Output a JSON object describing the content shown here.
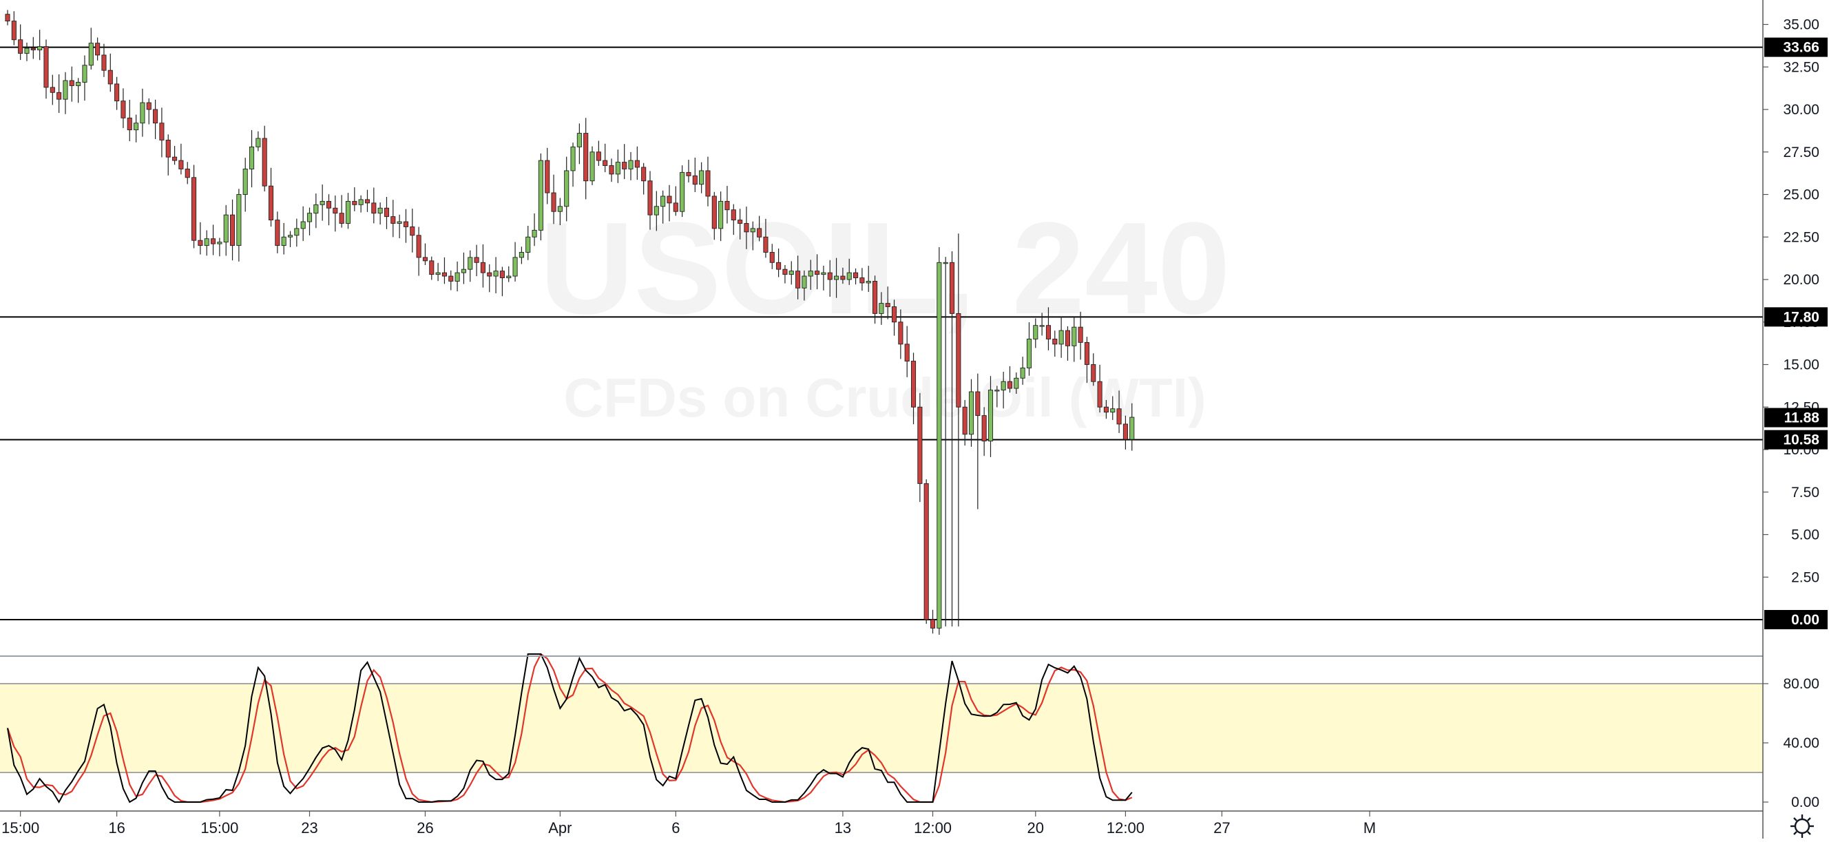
{
  "chart_data": {
    "type": "candlestick",
    "symbol_watermark": "USOIL, 240",
    "instrument_watermark": "CFDs on Crude Oil (WTI)",
    "price_axis": {
      "range": [
        -1.4,
        36.3
      ],
      "ticks": [
        "0.00",
        "2.50",
        "5.00",
        "7.50",
        "10.00",
        "12.50",
        "15.00",
        "17.50",
        "20.00",
        "22.50",
        "25.00",
        "27.50",
        "30.00",
        "32.50",
        "35.00"
      ],
      "tick_values": [
        0,
        2.5,
        5,
        7.5,
        10,
        12.5,
        15,
        17.5,
        20,
        22.5,
        25,
        27.5,
        30,
        32.5,
        35
      ]
    },
    "time_axis": {
      "labels": [
        "15:00",
        "16",
        "15:00",
        "23",
        "26",
        "Apr",
        "6",
        "13",
        "12:00",
        "20",
        "12:00",
        "27",
        "M"
      ],
      "label_bar_index": [
        2,
        17,
        33,
        47,
        65,
        86,
        104,
        130,
        144,
        160,
        174,
        189,
        212
      ]
    },
    "horizontal_levels": [
      {
        "value": 33.66,
        "label": "33.66"
      },
      {
        "value": 17.8,
        "label": "17.80"
      },
      {
        "value": 10.58,
        "label": "10.58"
      },
      {
        "value": 0.0,
        "label": "0.00"
      }
    ],
    "last_price": {
      "value": 11.88,
      "label": "11.88"
    },
    "colors": {
      "up": "#6ba583",
      "down": "#d75442",
      "up_fill": "#7fbf60",
      "down_fill": "#c9413f",
      "level_line": "#000000",
      "badge": "#000000",
      "stoch_k": "#000000",
      "stoch_d": "#e0362c",
      "stoch_band": "#fffad0"
    },
    "candles_close": [
      35.2,
      34.1,
      33.3,
      33.6,
      33.5,
      33.7,
      31.3,
      31.0,
      30.6,
      31.7,
      31.4,
      31.6,
      32.6,
      33.9,
      33.2,
      32.3,
      31.5,
      30.5,
      29.5,
      28.8,
      29.2,
      30.4,
      30.0,
      29.2,
      28.2,
      27.2,
      27.0,
      26.5,
      26.0,
      22.3,
      22.0,
      22.4,
      22.1,
      22.2,
      23.8,
      22.0,
      25.0,
      26.5,
      27.8,
      28.3,
      25.5,
      23.5,
      22.0,
      22.5,
      22.6,
      23.0,
      23.4,
      23.9,
      24.4,
      24.6,
      24.2,
      23.9,
      23.3,
      24.6,
      24.4,
      24.7,
      24.5,
      23.9,
      24.2,
      23.7,
      23.3,
      23.4,
      23.1,
      22.6,
      21.3,
      21.1,
      20.3,
      20.4,
      20.2,
      19.9,
      20.4,
      20.6,
      21.3,
      21.0,
      20.4,
      20.2,
      20.5,
      20.1,
      20.2,
      21.3,
      21.6,
      22.5,
      22.9,
      27.0,
      25.1,
      24.0,
      24.3,
      26.4,
      27.8,
      28.6,
      25.8,
      27.5,
      27.0,
      26.7,
      26.2,
      26.9,
      26.5,
      27.0,
      26.6,
      25.8,
      23.8,
      24.3,
      24.9,
      24.5,
      24.0,
      26.3,
      26.1,
      25.6,
      26.4,
      24.9,
      23.0,
      24.6,
      24.1,
      23.5,
      23.3,
      22.8,
      23.0,
      22.5,
      21.6,
      21.0,
      20.6,
      20.3,
      20.5,
      19.5,
      20.2,
      20.5,
      20.3,
      20.4,
      20.0,
      20.2,
      20.0,
      20.4,
      20.1,
      19.8,
      19.9,
      18.0,
      18.6,
      18.4,
      17.5,
      16.2,
      15.2,
      12.5,
      8.0,
      0.0,
      -0.5,
      21.0,
      21.0,
      18.0,
      12.5,
      10.9,
      13.4,
      12.0,
      10.5,
      13.5,
      13.5,
      14.0,
      13.6,
      14.2,
      14.8,
      16.5,
      17.3,
      17.3,
      16.5,
      16.2,
      17.0,
      16.1,
      17.2,
      16.3,
      15.0,
      14.0,
      12.5,
      12.2,
      12.4,
      11.5,
      10.6,
      11.9
    ]
  }
}
